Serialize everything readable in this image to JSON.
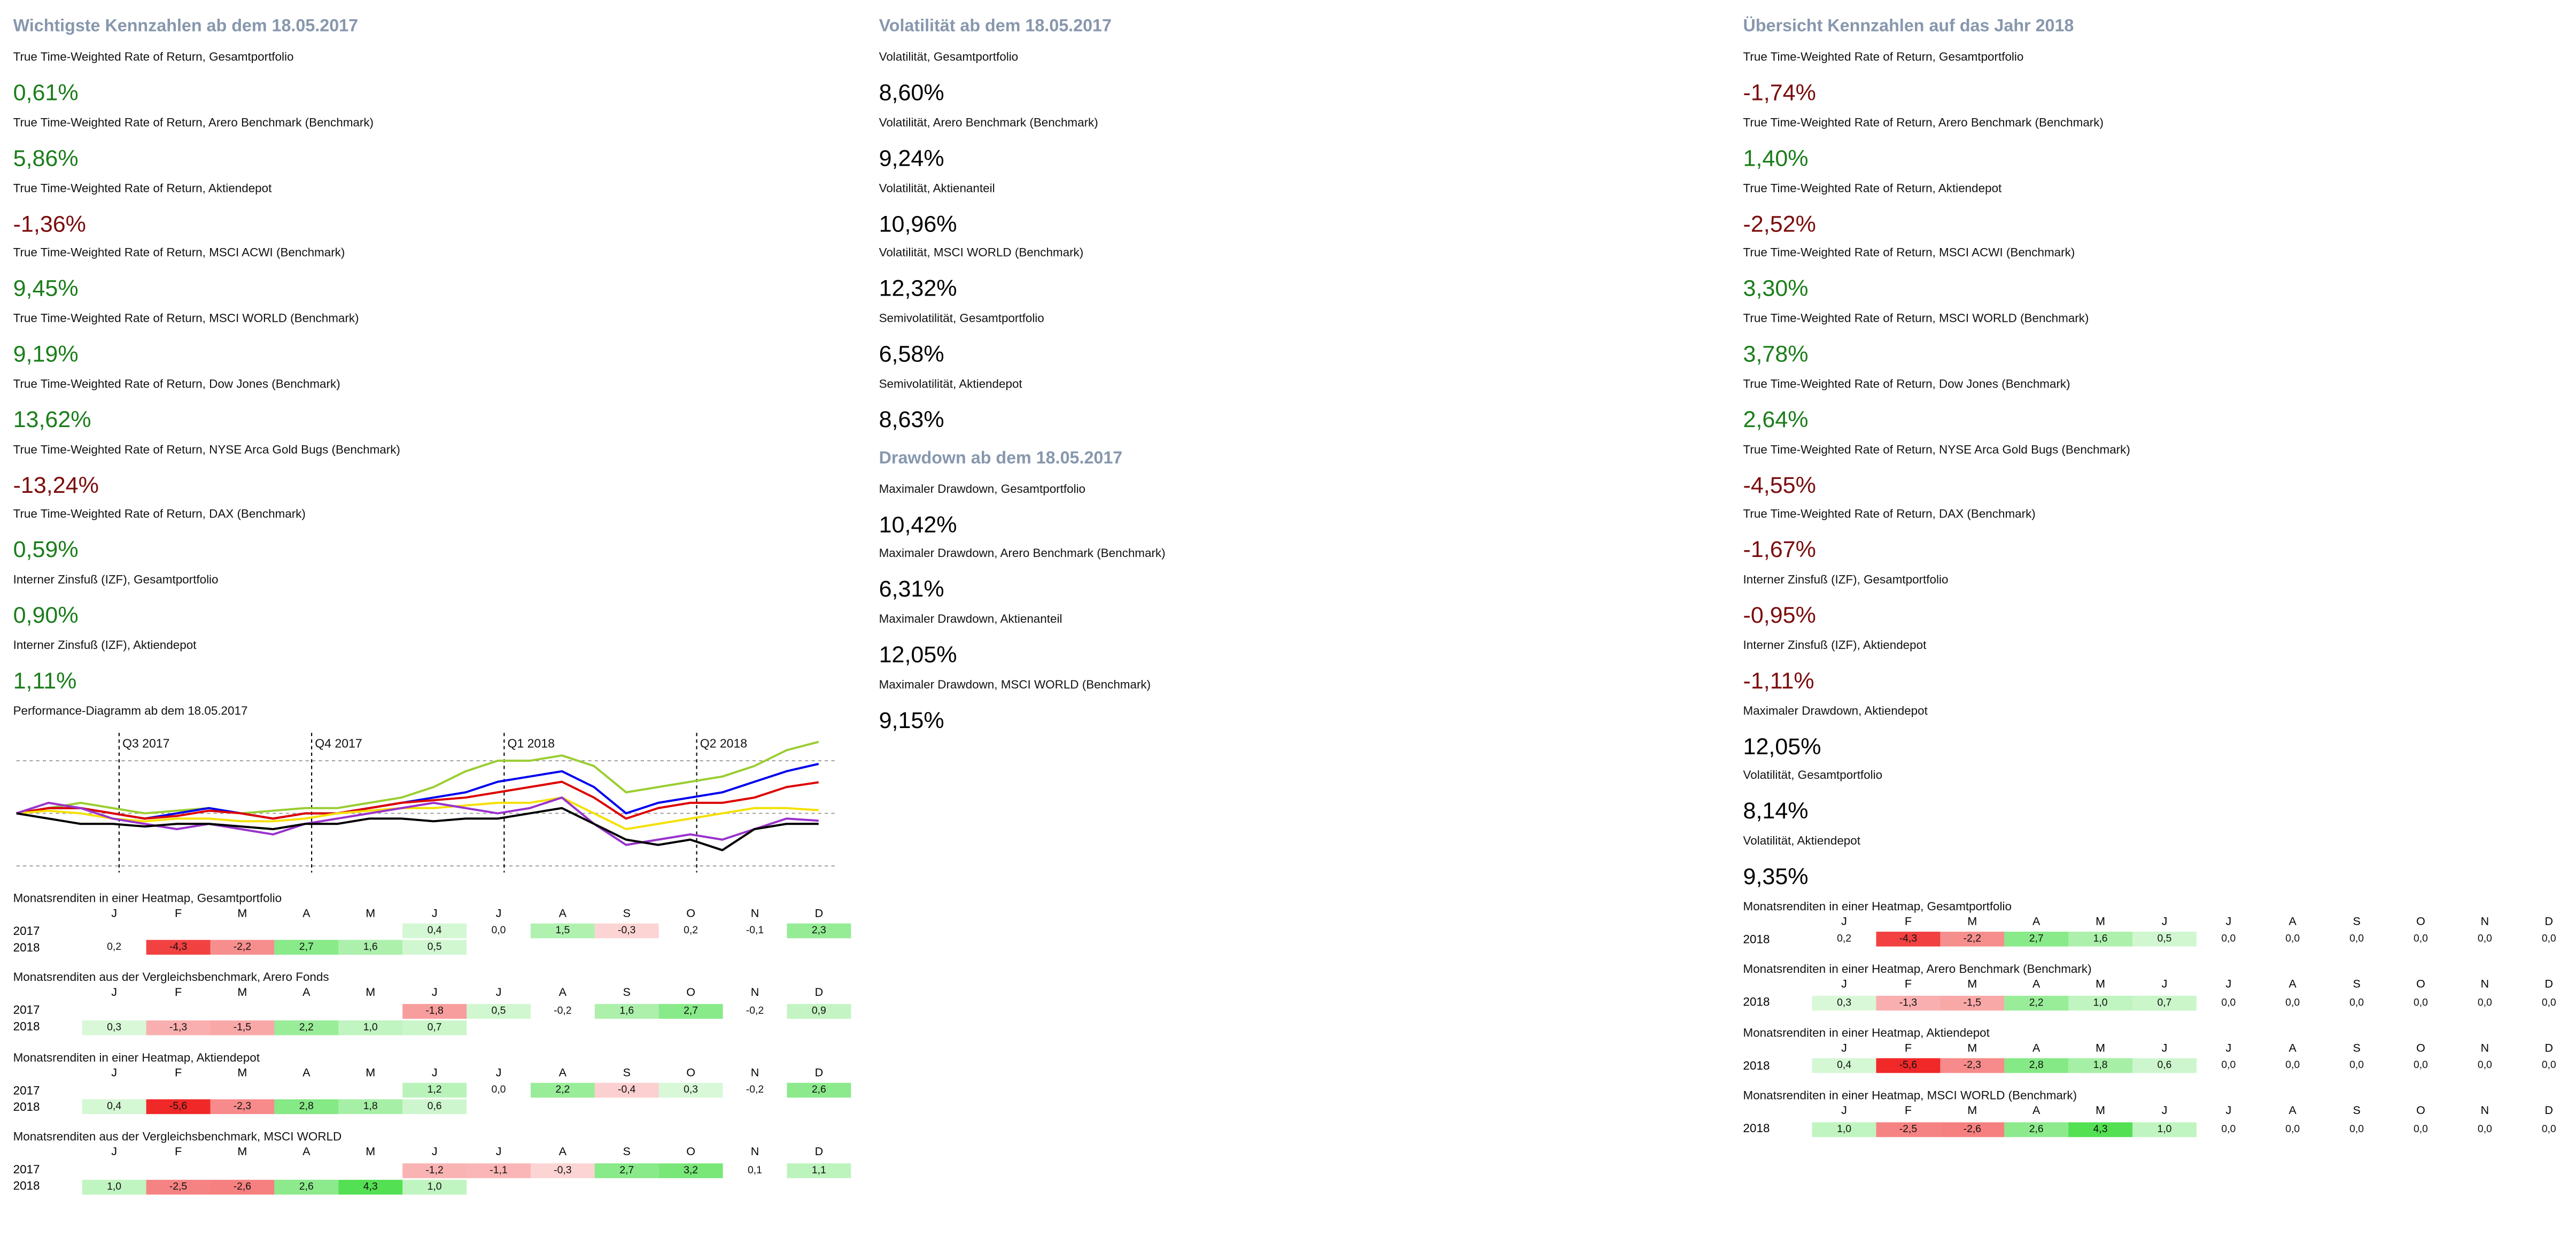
{
  "months": [
    "J",
    "F",
    "M",
    "A",
    "M",
    "J",
    "J",
    "A",
    "S",
    "O",
    "N",
    "D"
  ],
  "columns": [
    {
      "blocks": [
        {
          "type": "title",
          "text": "Wichtigste Kennzahlen ab dem 18.05.2017"
        },
        {
          "type": "kpi",
          "label": "True Time-Weighted Rate of Return, Gesamtportfolio",
          "value": "0,61%",
          "color": "#1b7d1b"
        },
        {
          "type": "kpi",
          "label": "True Time-Weighted Rate of Return, Arero Benchmark (Benchmark)",
          "value": "5,86%",
          "color": "#1b7d1b"
        },
        {
          "type": "kpi",
          "label": "True Time-Weighted Rate of Return, Aktiendepot",
          "value": "-1,36%",
          "color": "#7b0c0c"
        },
        {
          "type": "kpi",
          "label": "True Time-Weighted Rate of Return, MSCI ACWI  (Benchmark)",
          "value": "9,45%",
          "color": "#1b7d1b"
        },
        {
          "type": "kpi",
          "label": "True Time-Weighted Rate of Return, MSCI WORLD (Benchmark)",
          "value": "9,19%",
          "color": "#1b7d1b"
        },
        {
          "type": "kpi",
          "label": "True Time-Weighted Rate of Return, Dow Jones (Benchmark)",
          "value": "13,62%",
          "color": "#1b7d1b"
        },
        {
          "type": "kpi",
          "label": "True Time-Weighted Rate of Return, NYSE Arca Gold Bugs (Benchmark)",
          "value": "-13,24%",
          "color": "#7b0c0c"
        },
        {
          "type": "kpi",
          "label": "True Time-Weighted Rate of Return, DAX (Benchmark)",
          "value": "0,59%",
          "color": "#1b7d1b"
        },
        {
          "type": "kpi",
          "label": "Interner Zinsfuß (IZF), Gesamtportfolio",
          "value": "0,90%",
          "color": "#1b7d1b"
        },
        {
          "type": "kpi",
          "label": "Interner Zinsfuß (IZF), Aktiendepot",
          "value": "1,11%",
          "color": "#1b7d1b"
        },
        {
          "type": "line",
          "title": "Performance-Diagramm ab dem 18.05.2017",
          "x": [
            0,
            0.5,
            1,
            1.5,
            2,
            2.5,
            3,
            3.5,
            4,
            4.5,
            5,
            5.5,
            6,
            6.5,
            7,
            7.5,
            8,
            8.5,
            9,
            9.5,
            10,
            10.5,
            11,
            11.5,
            12,
            12.5
          ],
          "xlim": [
            0,
            12.8
          ],
          "xticks": [
            {
              "value": 1.6,
              "label": "Q3 2017"
            },
            {
              "value": 4.6,
              "label": "Q4 2017"
            },
            {
              "value": 7.6,
              "label": "Q1 2018"
            },
            {
              "value": 10.6,
              "label": "Q2 2018"
            }
          ],
          "ylim": [
            -15,
            17.8
          ],
          "yticks": [
            -10,
            0,
            10
          ],
          "grid": true,
          "series": [
            {
              "color": "#9acd32",
              "values": [
                0,
                1,
                2,
                1,
                0,
                0.5,
                1,
                0,
                0.5,
                1,
                1,
                2,
                3,
                5,
                8,
                10,
                10,
                11,
                9,
                4,
                5,
                6,
                7,
                9,
                12,
                13.6
              ]
            },
            {
              "color": "#0000ee",
              "values": [
                0,
                1,
                1,
                0,
                -1,
                0,
                1,
                0,
                -1,
                0,
                0,
                1,
                2,
                3,
                4,
                6,
                7,
                8,
                5,
                0,
                2,
                3,
                4,
                6,
                8,
                9.4
              ]
            },
            {
              "color": "#dd0000",
              "values": [
                0,
                1,
                1,
                0,
                -1,
                -0.5,
                0.5,
                0,
                -1,
                0,
                0,
                1,
                2,
                2.5,
                3,
                4,
                5,
                6,
                3,
                -1,
                1,
                2,
                2,
                3,
                5,
                5.9
              ]
            },
            {
              "color": "#f5e000",
              "values": [
                0,
                0.5,
                0,
                -1,
                -1.5,
                -1,
                -1,
                -1.5,
                -1.5,
                -1,
                0,
                0.5,
                1,
                1,
                1.5,
                2,
                2,
                3,
                0,
                -3,
                -2,
                -1,
                0,
                1,
                1,
                0.6
              ]
            },
            {
              "color": "#9932cc",
              "values": [
                0,
                2,
                1,
                -1,
                -2,
                -3,
                -2,
                -3,
                -4,
                -2,
                -1,
                0,
                1,
                2,
                1,
                0,
                1,
                3,
                -2,
                -6,
                -5,
                -4,
                -5,
                -3,
                -1,
                -1.4
              ]
            },
            {
              "color": "#000000",
              "values": [
                0,
                -1,
                -2,
                -2,
                -2.5,
                -2,
                -2,
                -2.5,
                -3,
                -2,
                -2,
                -1,
                -1,
                -1.5,
                -1,
                -1,
                0,
                1,
                -2,
                -5,
                -6,
                -5,
                -7,
                -3,
                -2,
                -2
              ]
            }
          ]
        },
        {
          "type": "heatmap",
          "title": "Monatsrenditen in einer Heatmap, Gesamtportfolio",
          "rows": [
            {
              "year": "2017",
              "values": [
                null,
                null,
                null,
                null,
                null,
                "0,4",
                "0,0",
                "1,5",
                "-0,3",
                "0,2",
                "-0,1",
                "2,3"
              ]
            },
            {
              "year": "2018",
              "values": [
                "0,2",
                "-4,3",
                "-2,2",
                "2,7",
                "1,6",
                "0,5",
                null,
                null,
                null,
                null,
                null,
                null
              ]
            }
          ]
        },
        {
          "type": "heatmap",
          "title": "Monatsrenditen aus der Vergleichsbenchmark, Arero Fonds",
          "rows": [
            {
              "year": "2017",
              "values": [
                null,
                null,
                null,
                null,
                null,
                "-1,8",
                "0,5",
                "-0,2",
                "1,6",
                "2,7",
                "-0,2",
                "0,9"
              ]
            },
            {
              "year": "2018",
              "values": [
                "0,3",
                "-1,3",
                "-1,5",
                "2,2",
                "1,0",
                "0,7",
                null,
                null,
                null,
                null,
                null,
                null
              ]
            }
          ]
        },
        {
          "type": "heatmap",
          "title": "Monatsrenditen in einer Heatmap, Aktiendepot",
          "rows": [
            {
              "year": "2017",
              "values": [
                null,
                null,
                null,
                null,
                null,
                "1,2",
                "0,0",
                "2,2",
                "-0,4",
                "0,3",
                "-0,2",
                "2,6"
              ]
            },
            {
              "year": "2018",
              "values": [
                "0,4",
                "-5,6",
                "-2,3",
                "2,8",
                "1,8",
                "0,6",
                null,
                null,
                null,
                null,
                null,
                null
              ]
            }
          ]
        },
        {
          "type": "heatmap",
          "title": "Monatsrenditen aus der Vergleichsbenchmark, MSCI WORLD",
          "rows": [
            {
              "year": "2017",
              "values": [
                null,
                null,
                null,
                null,
                null,
                "-1,2",
                "-1,1",
                "-0,3",
                "2,7",
                "3,2",
                "0,1",
                "1,1"
              ]
            },
            {
              "year": "2018",
              "values": [
                "1,0",
                "-2,5",
                "-2,6",
                "2,6",
                "4,3",
                "1,0",
                null,
                null,
                null,
                null,
                null,
                null
              ]
            }
          ]
        }
      ]
    },
    {
      "blocks": [
        {
          "type": "title",
          "text": "Volatilität ab dem 18.05.2017"
        },
        {
          "type": "kpi",
          "label": "Volatilität, Gesamtportfolio",
          "value": "8,60%",
          "color": "#000000"
        },
        {
          "type": "kpi",
          "label": "Volatilität, Arero Benchmark (Benchmark)",
          "value": "9,24%",
          "color": "#000000"
        },
        {
          "type": "kpi",
          "label": "Volatilität, Aktienanteil",
          "value": "10,96%",
          "color": "#000000"
        },
        {
          "type": "kpi",
          "label": "Volatilität, MSCI WORLD (Benchmark)",
          "value": "12,32%",
          "color": "#000000"
        },
        {
          "type": "kpi",
          "label": "Semivolatilität, Gesamtportfolio",
          "value": "6,58%",
          "color": "#000000"
        },
        {
          "type": "kpi",
          "label": "Semivolatilität, Aktiendepot",
          "value": "8,63%",
          "color": "#000000"
        },
        {
          "type": "title",
          "text": "Drawdown ab dem 18.05.2017"
        },
        {
          "type": "kpi",
          "label": "Maximaler Drawdown, Gesamtportfolio",
          "value": "10,42%",
          "color": "#000000"
        },
        {
          "type": "kpi",
          "label": "Maximaler Drawdown, Arero Benchmark (Benchmark)",
          "value": "6,31%",
          "color": "#000000"
        },
        {
          "type": "kpi",
          "label": "Maximaler Drawdown, Aktienanteil",
          "value": "12,05%",
          "color": "#000000"
        },
        {
          "type": "kpi",
          "label": "Maximaler Drawdown, MSCI WORLD (Benchmark)",
          "value": "9,15%",
          "color": "#000000"
        }
      ]
    },
    {
      "blocks": [
        {
          "type": "title",
          "text": "Übersicht Kennzahlen auf das Jahr 2018"
        },
        {
          "type": "kpi",
          "label": "True Time-Weighted Rate of Return, Gesamtportfolio",
          "value": "-1,74%",
          "color": "#7b0c0c"
        },
        {
          "type": "kpi",
          "label": "True Time-Weighted Rate of Return, Arero Benchmark (Benchmark)",
          "value": "1,40%",
          "color": "#1b7d1b"
        },
        {
          "type": "kpi",
          "label": "True Time-Weighted Rate of Return, Aktiendepot",
          "value": "-2,52%",
          "color": "#7b0c0c"
        },
        {
          "type": "kpi",
          "label": "True Time-Weighted Rate of Return, MSCI ACWI  (Benchmark)",
          "value": "3,30%",
          "color": "#1b7d1b"
        },
        {
          "type": "kpi",
          "label": "True Time-Weighted Rate of Return, MSCI WORLD (Benchmark)",
          "value": "3,78%",
          "color": "#1b7d1b"
        },
        {
          "type": "kpi",
          "label": "True Time-Weighted Rate of Return, Dow Jones (Benchmark)",
          "value": "2,64%",
          "color": "#1b7d1b"
        },
        {
          "type": "kpi",
          "label": "True Time-Weighted Rate of Return, NYSE Arca Gold Bugs (Benchmark)",
          "value": "-4,55%",
          "color": "#7b0c0c"
        },
        {
          "type": "kpi",
          "label": "True Time-Weighted Rate of Return, DAX (Benchmark)",
          "value": "-1,67%",
          "color": "#7b0c0c"
        },
        {
          "type": "kpi",
          "label": "Interner Zinsfuß (IZF), Gesamtportfolio",
          "value": "-0,95%",
          "color": "#7b0c0c"
        },
        {
          "type": "kpi",
          "label": "Interner Zinsfuß (IZF), Aktiendepot",
          "value": "-1,11%",
          "color": "#7b0c0c"
        },
        {
          "type": "kpi",
          "label": "Maximaler Drawdown, Aktiendepot",
          "value": "12,05%",
          "color": "#000000"
        },
        {
          "type": "kpi",
          "label": "Volatilität, Gesamtportfolio",
          "value": "8,14%",
          "color": "#000000"
        },
        {
          "type": "kpi",
          "label": "Volatilität, Aktiendepot",
          "value": "9,35%",
          "color": "#000000"
        },
        {
          "type": "heatmap",
          "title": "Monatsrenditen in einer Heatmap, Gesamtportfolio",
          "rows": [
            {
              "year": "2018",
              "values": [
                "0,2",
                "-4,3",
                "-2,2",
                "2,7",
                "1,6",
                "0,5",
                "0,0",
                "0,0",
                "0,0",
                "0,0",
                "0,0",
                "0,0"
              ]
            }
          ]
        },
        {
          "type": "heatmap",
          "title": "Monatsrenditen in einer Heatmap, Arero Benchmark (Benchmark)",
          "rows": [
            {
              "year": "2018",
              "values": [
                "0,3",
                "-1,3",
                "-1,5",
                "2,2",
                "1,0",
                "0,7",
                "0,0",
                "0,0",
                "0,0",
                "0,0",
                "0,0",
                "0,0"
              ]
            }
          ]
        },
        {
          "type": "heatmap",
          "title": "Monatsrenditen in einer Heatmap, Aktiendepot",
          "rows": [
            {
              "year": "2018",
              "values": [
                "0,4",
                "-5,6",
                "-2,3",
                "2,8",
                "1,8",
                "0,6",
                "0,0",
                "0,0",
                "0,0",
                "0,0",
                "0,0",
                "0,0"
              ]
            }
          ]
        },
        {
          "type": "heatmap",
          "title": "Monatsrenditen in einer Heatmap, MSCI WORLD (Benchmark)",
          "rows": [
            {
              "year": "2018",
              "values": [
                "1,0",
                "-2,5",
                "-2,6",
                "2,6",
                "4,3",
                "1,0",
                "0,0",
                "0,0",
                "0,0",
                "0,0",
                "0,0",
                "0,0"
              ]
            }
          ]
        }
      ]
    }
  ]
}
